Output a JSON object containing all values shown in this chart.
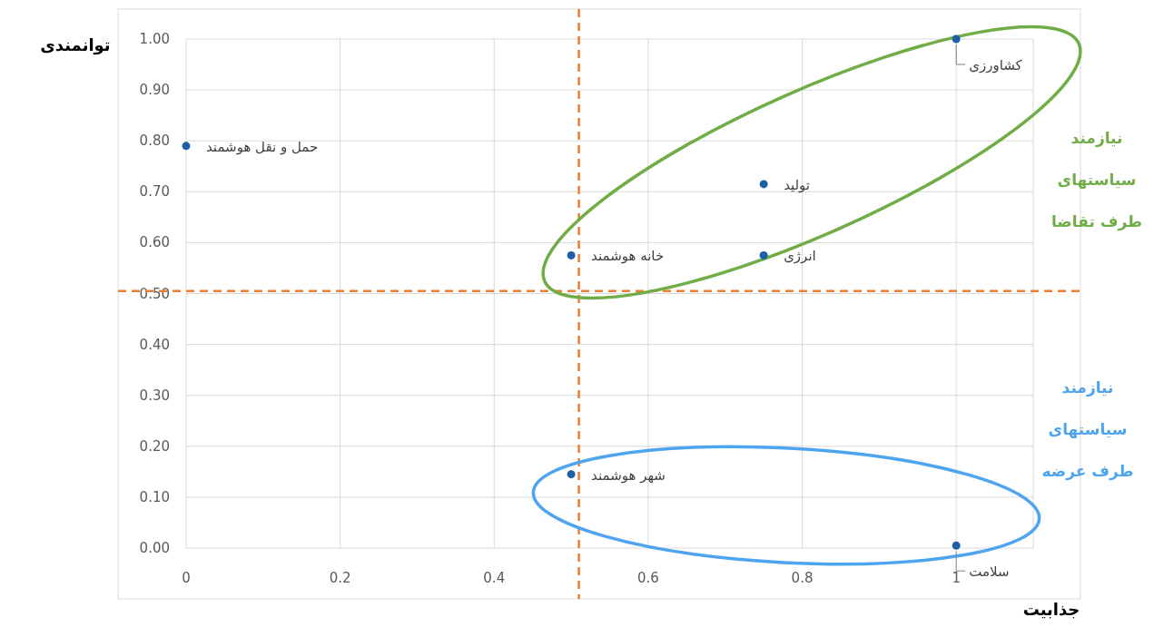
{
  "chart_data": {
    "type": "scatter",
    "xlabel": "جذابیت",
    "ylabel": "توانمندی",
    "x": [
      0,
      0.5,
      0.75,
      0.75,
      1,
      0.5,
      1
    ],
    "series": [
      {
        "color": "#1f5fa8",
        "values": [
          0.79,
          0.575,
          0.715,
          0.575,
          1.0,
          0.145,
          0.005
        ]
      }
    ],
    "xlim": [
      0,
      1.1
    ],
    "xticks": [
      0,
      0.2,
      0.4,
      0.6,
      0.8,
      1
    ],
    "ylim": [
      0,
      1
    ],
    "yticks": [
      {
        "value": 0,
        "label": "0.00"
      },
      {
        "value": 0.1,
        "label": "0.10"
      },
      {
        "value": 0.2,
        "label": "0.20"
      },
      {
        "value": 0.3,
        "label": "0.30"
      },
      {
        "value": 0.4,
        "label": "0.40"
      },
      {
        "value": 0.5,
        "label": "0.50"
      },
      {
        "value": 0.6,
        "label": "0.60"
      },
      {
        "value": 0.7,
        "label": "0.70"
      },
      {
        "value": 0.8,
        "label": "0.80"
      },
      {
        "value": 0.9,
        "label": "0.90"
      },
      {
        "value": 1,
        "label": "1.00"
      }
    ],
    "grid": true,
    "marker": "circle",
    "ref_lines": [
      {
        "axis": "x",
        "value": 0.51,
        "color": "#ed7d31",
        "line_style": "dashed"
      },
      {
        "axis": "y",
        "value": 0.505,
        "color": "#ed7d31",
        "line_style": "dashed"
      }
    ],
    "annotations": [
      {
        "text": "حمل و نقل هوشمند",
        "x": 0,
        "y": 0.79
      },
      {
        "text": "خانه هوشمند",
        "x": 0.5,
        "y": 0.575
      },
      {
        "text": "تولید",
        "x": 0.75,
        "y": 0.715
      },
      {
        "text": "انرژی",
        "x": 0.75,
        "y": 0.575
      },
      {
        "text": "کشاورزی",
        "x": 1,
        "y": 1.0
      },
      {
        "text": "شهر هوشمند",
        "x": 0.5,
        "y": 0.145
      },
      {
        "text": "سلامت",
        "x": 1,
        "y": 0.005
      },
      "نیازمند\nسیاستهای\nطرف تقاضا",
      "نیازمند\nسیاستهای\nطرف عرضه"
    ]
  }
}
